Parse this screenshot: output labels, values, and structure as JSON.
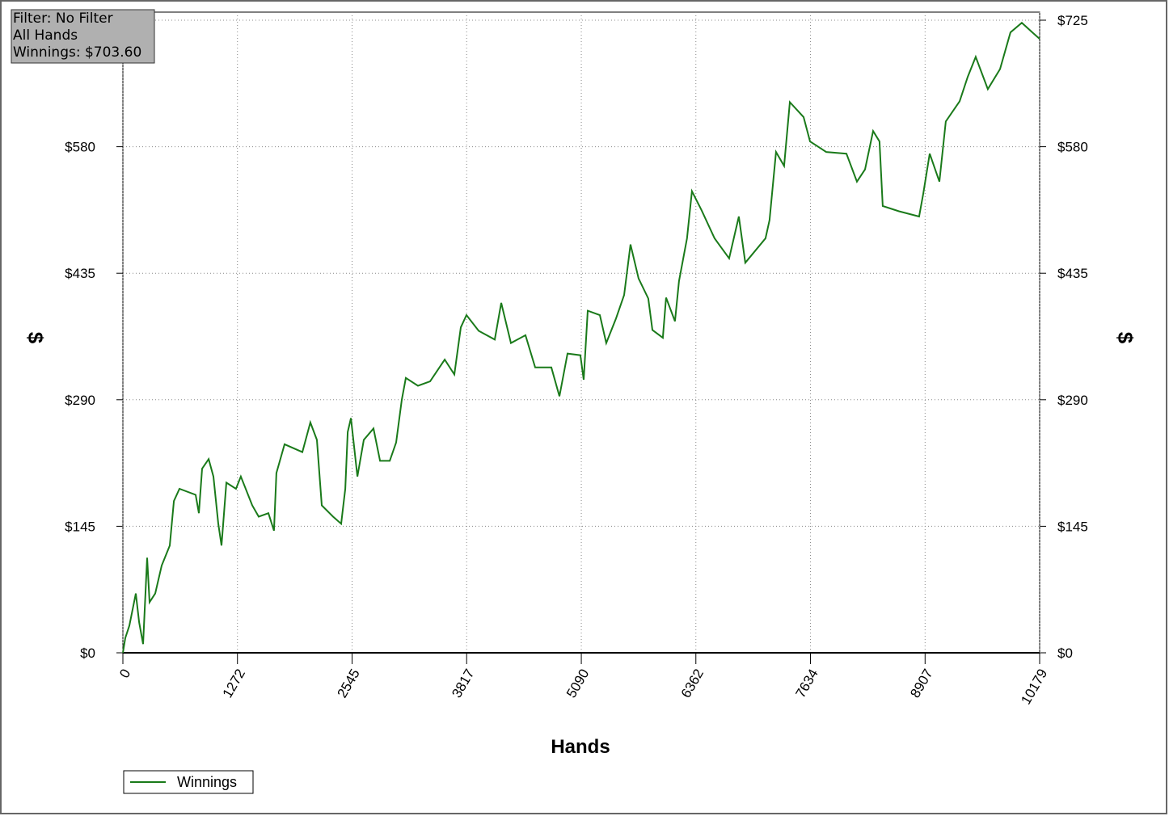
{
  "chart_data": {
    "type": "line",
    "annotation": [
      "Filter: No Filter",
      "All Hands",
      "Winnings: $703.60"
    ],
    "xlabel": "Hands",
    "ylabel": "$",
    "xlim": [
      0,
      10179
    ],
    "ylim": [
      0,
      725
    ],
    "xticks": [
      0,
      1272,
      2545,
      3817,
      5090,
      6362,
      7634,
      8907,
      10179
    ],
    "yticks": [
      {
        "value": 0,
        "label": "$0"
      },
      {
        "value": 145,
        "label": "$145"
      },
      {
        "value": 290,
        "label": "$290"
      },
      {
        "value": 435,
        "label": "$435"
      },
      {
        "value": 580,
        "label": "$580"
      },
      {
        "value": 725,
        "label": "$725"
      }
    ],
    "grid": true,
    "legend": "bottom-left",
    "x": [
      0,
      27,
      72,
      144,
      180,
      224,
      269,
      296,
      359,
      431,
      521,
      566,
      628,
      808,
      844,
      880,
      952,
      1005,
      1059,
      1095,
      1149,
      1256,
      1310,
      1436,
      1508,
      1616,
      1678,
      1705,
      1795,
      1993,
      2082,
      2154,
      2208,
      2334,
      2424,
      2469,
      2496,
      2532,
      2604,
      2675,
      2783,
      2855,
      2963,
      3034,
      3097,
      3142,
      3276,
      3411,
      3573,
      3680,
      3752,
      3815,
      3950,
      4129,
      4201,
      4309,
      4470,
      4578,
      4757,
      4847,
      4937,
      5080,
      5116,
      5161,
      5296,
      5367,
      5475,
      5565,
      5636,
      5726,
      5834,
      5879,
      5995,
      6031,
      6130,
      6175,
      6264,
      6318,
      6426,
      6570,
      6731,
      6839,
      6911,
      7135,
      7180,
      7252,
      7342,
      7405,
      7558,
      7630,
      7809,
      8034,
      8150,
      8240,
      8330,
      8401,
      8437,
      8617,
      8841,
      8886,
      8958,
      9066,
      9137,
      9290,
      9380,
      9469,
      9604,
      9739,
      9855,
      9981,
      10098,
      10179
    ],
    "series": [
      {
        "name": "Winnings",
        "color": "#1a7a1a",
        "values": [
          0,
          17,
          31,
          68,
          35,
          10,
          109,
          58,
          68,
          100,
          123,
          174,
          188,
          181,
          160,
          211,
          222,
          202,
          148,
          123,
          195,
          188,
          202,
          169,
          156,
          160,
          140,
          206,
          239,
          230,
          264,
          244,
          169,
          156,
          148,
          188,
          253,
          269,
          202,
          244,
          257,
          220,
          220,
          241,
          290,
          315,
          306,
          311,
          336,
          319,
          373,
          387,
          369,
          359,
          401,
          355,
          364,
          327,
          327,
          294,
          343,
          341,
          313,
          392,
          387,
          355,
          383,
          410,
          468,
          429,
          406,
          370,
          361,
          407,
          380,
          426,
          475,
          529,
          507,
          475,
          452,
          500,
          447,
          475,
          496,
          574,
          558,
          631,
          614,
          586,
          574,
          572,
          540,
          554,
          598,
          586,
          512,
          506,
          500,
          526,
          572,
          540,
          609,
          632,
          660,
          683,
          646,
          669,
          711,
          722,
          711,
          703.6
        ]
      }
    ]
  }
}
